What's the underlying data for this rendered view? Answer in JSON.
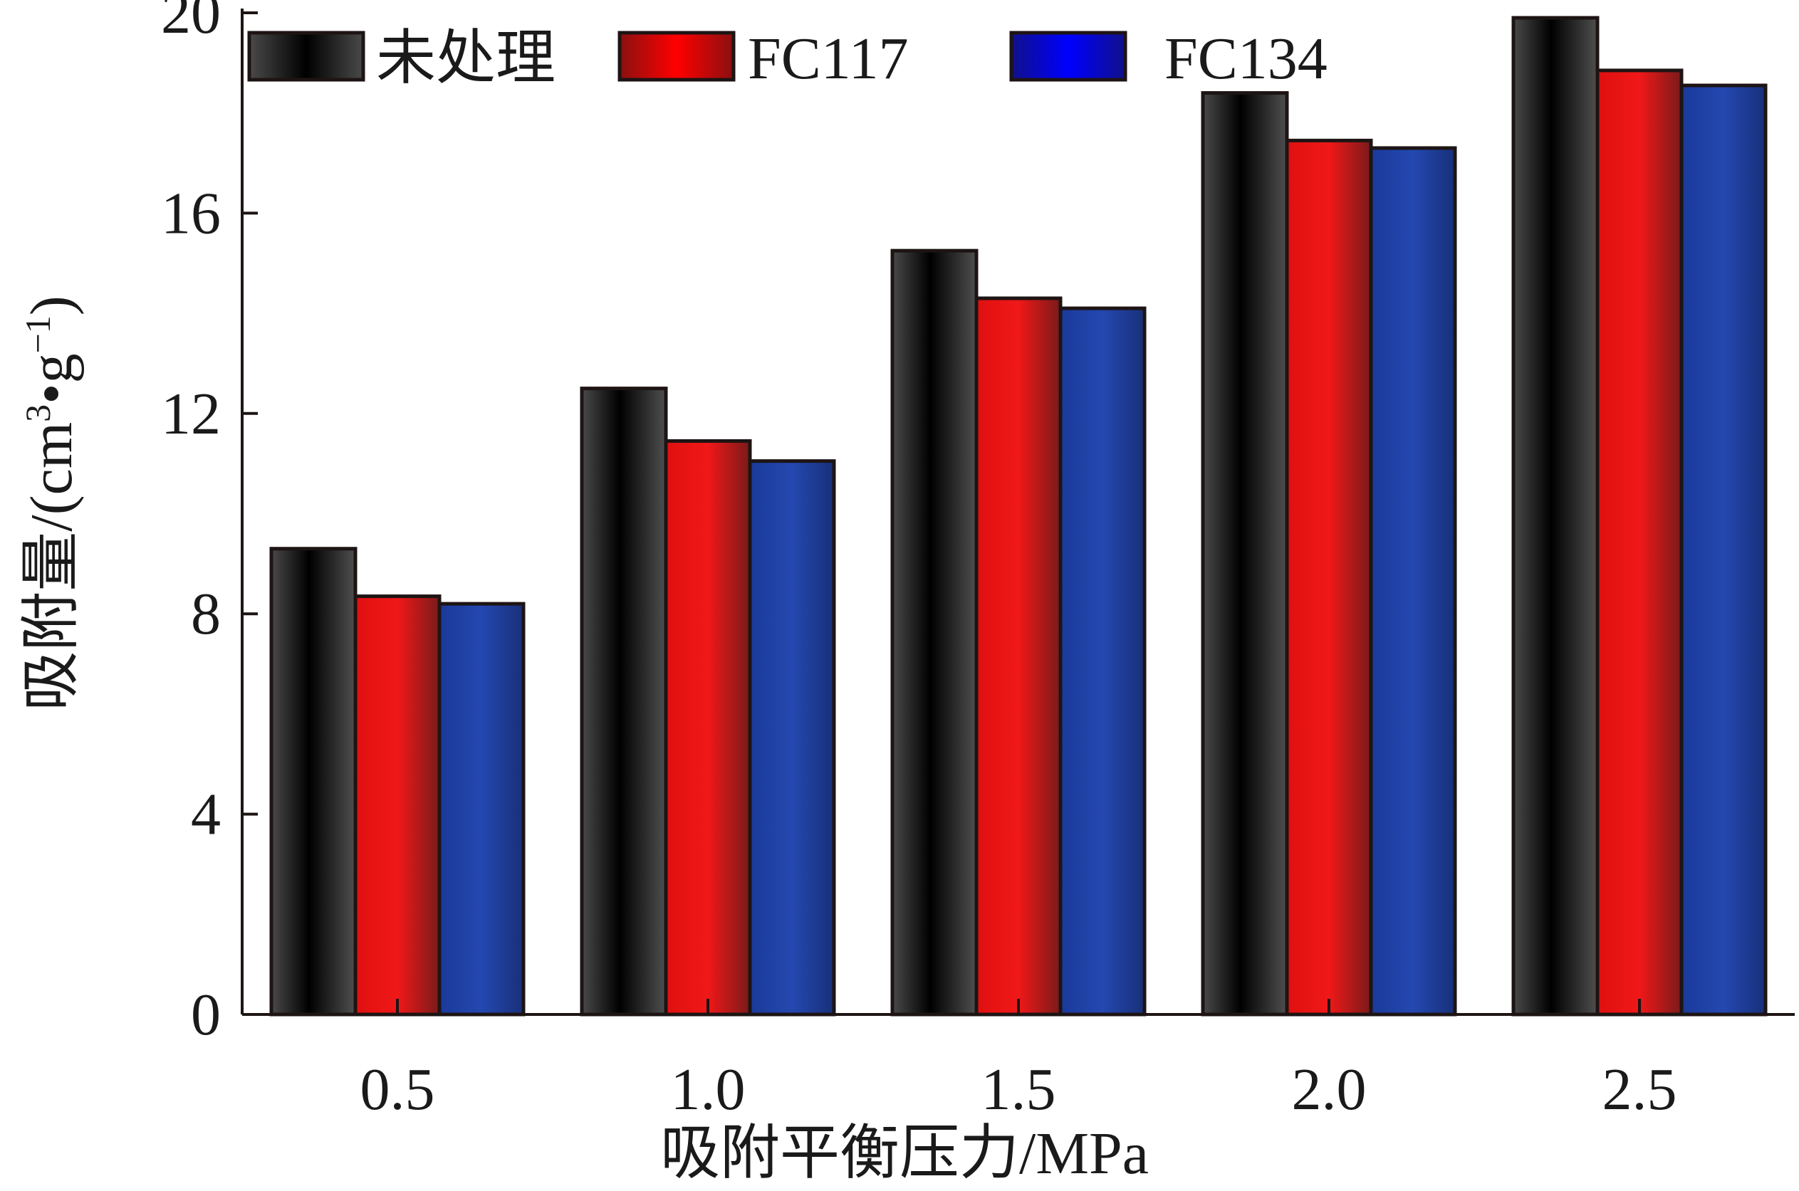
{
  "chart_data": {
    "type": "bar",
    "categories": [
      "0.5",
      "1.0",
      "1.5",
      "2.0",
      "2.5"
    ],
    "series": [
      {
        "name": "未处理",
        "values": [
          9.3,
          12.5,
          15.25,
          18.4,
          19.9
        ]
      },
      {
        "name": "FC117",
        "values": [
          8.35,
          11.45,
          14.3,
          17.45,
          18.85
        ]
      },
      {
        "name": "FC134",
        "values": [
          8.2,
          11.05,
          14.1,
          17.3,
          18.55
        ]
      }
    ],
    "title": "",
    "xlabel": "吸附平衡压力/MPa",
    "ylabel": "吸附量/(cm³•g⁻¹)",
    "ylabel_parts": {
      "main": "吸附量/(cm",
      "sup1": "3",
      "mid": "•g",
      "sup2": "−1",
      "end": ")"
    },
    "ylim": [
      0,
      20
    ],
    "yticks": [
      "0",
      "4",
      "8",
      "12",
      "16",
      "20"
    ],
    "grid": false,
    "legend_position": "top-left",
    "colors": [
      "#2b2b2b",
      "#d81b1b",
      "#1f3f9c"
    ]
  }
}
